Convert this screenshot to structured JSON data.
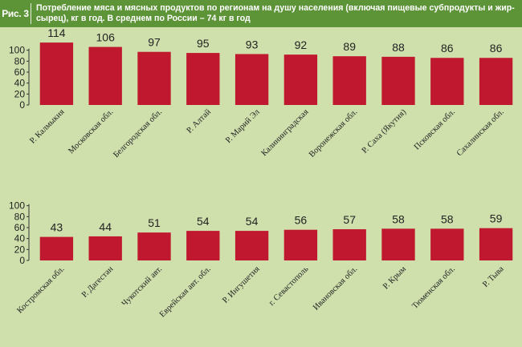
{
  "figure": {
    "label": "Рис. 3",
    "title": "Потребление мяса и мясных продуктов по регионам на душу населения (включая пищевые субпродукты и жир-сырец), кг в год. В среднем по России – 74 кг в год"
  },
  "colors": {
    "header": "#5d9438",
    "background": "#cfe0ad",
    "bar": "#c0182e"
  },
  "chart_data": [
    {
      "type": "bar",
      "categories": [
        "Р. Калмыкия",
        "Московская обл.",
        "Белгородская обл.",
        "Р. Алтай",
        "Р. Марий Эл",
        "Калининградская",
        "Воронежская обл.",
        "Р. Саха (Якутия)",
        "Псковская обл.",
        "Сахалинская обл."
      ],
      "values": [
        114,
        106,
        97,
        95,
        93,
        92,
        89,
        88,
        86,
        86
      ],
      "yticks": [
        0,
        20,
        40,
        60,
        80,
        100
      ],
      "ylim": [
        0,
        120
      ]
    },
    {
      "type": "bar",
      "categories": [
        "Костромская обл.",
        "Р. Дагестан",
        "Чукотский авт.",
        "Еврейская авт. обл.",
        "Р. Ингушетия",
        "г. Севастополь",
        "Ивановская обл.",
        "Р. Крым",
        "Тюменская обл.",
        "Р. Тыва"
      ],
      "values": [
        43,
        44,
        51,
        54,
        54,
        56,
        57,
        58,
        58,
        59
      ],
      "yticks": [
        0,
        20,
        40,
        60,
        80,
        100
      ],
      "ylim": [
        0,
        120
      ]
    }
  ]
}
